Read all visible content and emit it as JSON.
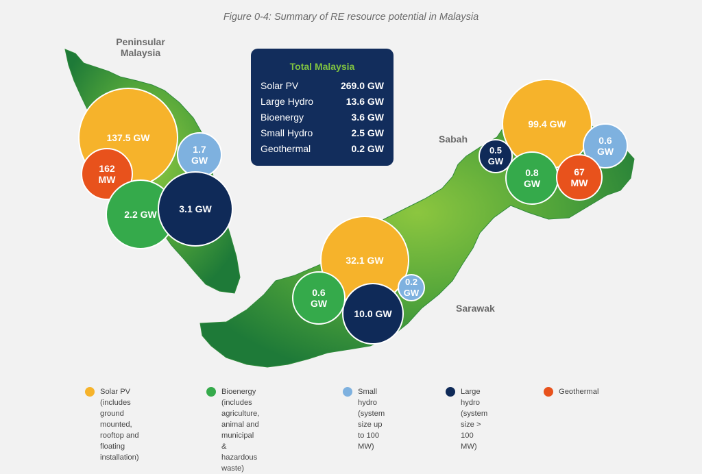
{
  "title": "Figure 0-4: Summary of RE resource potential in Malaysia",
  "colors": {
    "solar": "#f6b32b",
    "bioenergy": "#35aa4b",
    "small_hydro": "#7eb1df",
    "large_hydro": "#0f2a58",
    "geothermal": "#e8521c",
    "land": "#4e9d2c",
    "box_bg": "#122d5c",
    "box_title": "#7fc241"
  },
  "regions": {
    "peninsular_line1": "Peninsular",
    "peninsular_line2": "Malaysia",
    "sabah": "Sabah",
    "sarawak": "Sarawak"
  },
  "totals": {
    "title": "Total Malaysia",
    "rows": [
      {
        "label": "Solar PV",
        "value": "269.0 GW"
      },
      {
        "label": "Large Hydro",
        "value": "13.6 GW"
      },
      {
        "label": "Bioenergy",
        "value": "3.6 GW"
      },
      {
        "label": "Small Hydro",
        "value": "2.5 GW"
      },
      {
        "label": "Geothermal",
        "value": "0.2 GW"
      }
    ]
  },
  "peninsular": {
    "solar": "137.5 GW",
    "geothermal_l1": "162",
    "geothermal_l2": "MW",
    "small_hydro_l1": "1.7",
    "small_hydro_l2": "GW",
    "bioenergy": "2.2 GW",
    "large_hydro": "3.1 GW"
  },
  "sarawak": {
    "solar": "32.1 GW",
    "bioenergy_l1": "0.6",
    "bioenergy_l2": "GW",
    "small_hydro_l1": "0.2",
    "small_hydro_l2": "GW",
    "large_hydro": "10.0 GW"
  },
  "sabah": {
    "solar": "99.4 GW",
    "large_hydro_l1": "0.5",
    "large_hydro_l2": "GW",
    "small_hydro_l1": "0.6",
    "small_hydro_l2": "GW",
    "bioenergy_l1": "0.8",
    "bioenergy_l2": "GW",
    "geothermal_l1": "67",
    "geothermal_l2": "MW"
  },
  "legend": {
    "solar_l1": "Solar PV (includes ground",
    "solar_l2": "mounted, rooftop and",
    "solar_l3": "floating installation)",
    "bio_l1": "Bioenergy (includes agriculture,",
    "bio_l2": "animal and municipal &",
    "bio_l3": "hazardous waste)",
    "small_l1": "Small hydro (system",
    "small_l2": "size up to 100 MW)",
    "large_l1": "Large hydro (system",
    "large_l2": "size > 100 MW)",
    "geo_l1": "Geothermal"
  }
}
